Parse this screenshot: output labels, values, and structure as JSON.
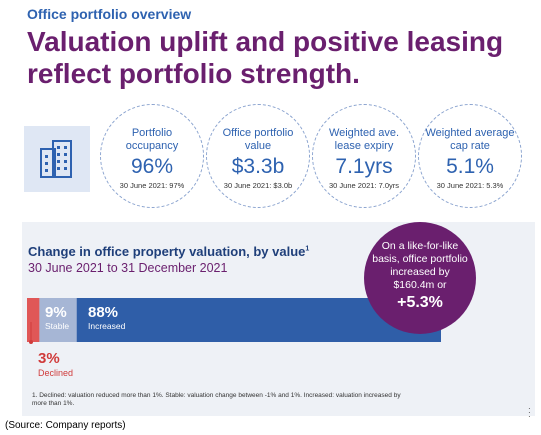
{
  "header": {
    "eyebrow": "Office portfolio overview",
    "headline": "Valuation uplift and positive leasing reflect portfolio strength."
  },
  "icons": {
    "building": "office-building-icon"
  },
  "kpis": [
    {
      "label": "Portfolio occupancy",
      "value": "96%",
      "sub": "30 June 2021: 97%"
    },
    {
      "label": "Office portfolio value",
      "value": "$3.3b",
      "sub": "30 June 2021: $3.0b"
    },
    {
      "label": "Weighted ave. lease expiry",
      "value": "7.1yrs",
      "sub": "30 June 2021: 7.0yrs"
    },
    {
      "label": "Weighted average cap rate",
      "value": "5.1%",
      "sub": "30 June 2021: 5.3%"
    }
  ],
  "chart_data": {
    "type": "bar",
    "title": "Change in office property valuation, by value",
    "title_footnote_ref": "1",
    "subtitle": "30 June 2021 to 31 December 2021",
    "categories": [
      "Declined",
      "Stable",
      "Increased"
    ],
    "values": [
      3,
      9,
      88
    ],
    "labels": [
      "3%",
      "9%",
      "88%"
    ],
    "colors": [
      "#e05757",
      "#a6b6d5",
      "#2f5ea8"
    ]
  },
  "callout": {
    "text": "On a like-for-like basis, office portfolio increased by $160.4m or",
    "pct": "+5.3%"
  },
  "footnote": "1.   Declined: valuation reduced more than 1%. Stable: valuation change between -1% and 1%. Increased: valuation increased by more than 1%.",
  "source": "(Source: Company reports)",
  "colors": {
    "purple": "#6a1f6e",
    "blue": "#2e62b0",
    "panel": "#eef1f6"
  }
}
